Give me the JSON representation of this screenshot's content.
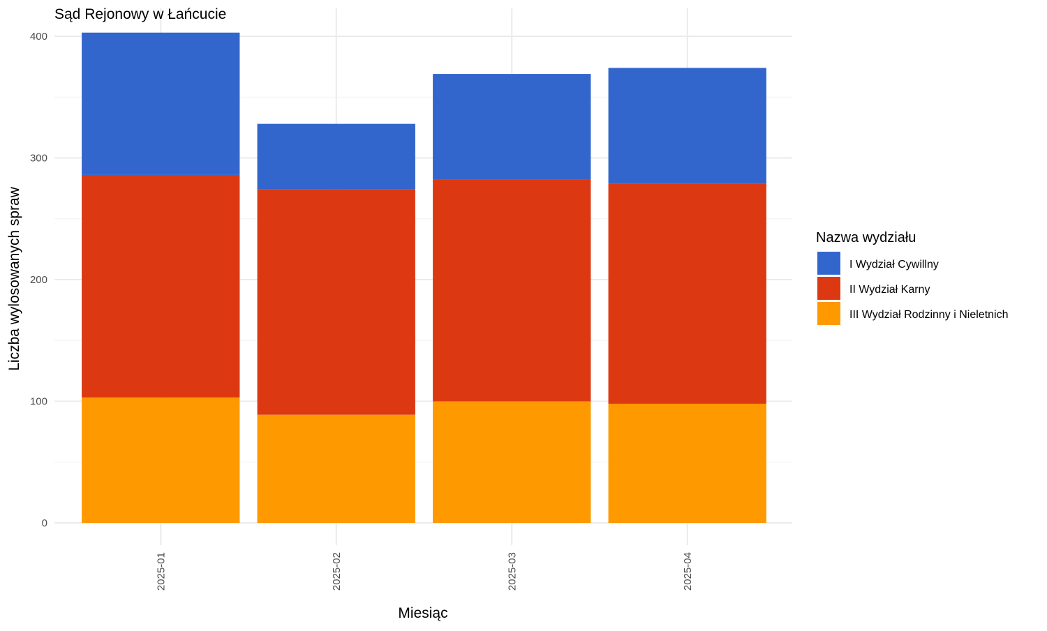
{
  "chart_data": {
    "type": "bar",
    "stacked": true,
    "title": "Sąd Rejonowy w Łańcucie",
    "xlabel": "Miesiąc",
    "ylabel": "Liczba wylosowanych spraw",
    "categories": [
      "2025-01",
      "2025-02",
      "2025-03",
      "2025-04"
    ],
    "ylim": [
      0,
      420
    ],
    "yticks": [
      0,
      100,
      200,
      300,
      400
    ],
    "grid": true,
    "legend": {
      "title": "Nazwa wydziału",
      "position": "right"
    },
    "series": [
      {
        "name": "III Wydział Rodzinny i Nieletnich",
        "color": "#FF9900",
        "values": [
          103,
          89,
          100,
          98
        ]
      },
      {
        "name": "II Wydział Karny",
        "color": "#DC3912",
        "values": [
          183,
          185,
          182,
          181
        ]
      },
      {
        "name": "I Wydział Cywillny",
        "color": "#3366CC",
        "values": [
          117,
          54,
          87,
          95
        ]
      }
    ],
    "legend_order": [
      "I Wydział Cywillny",
      "II Wydział Karny",
      "III Wydział Rodzinny i Nieletnich"
    ]
  }
}
